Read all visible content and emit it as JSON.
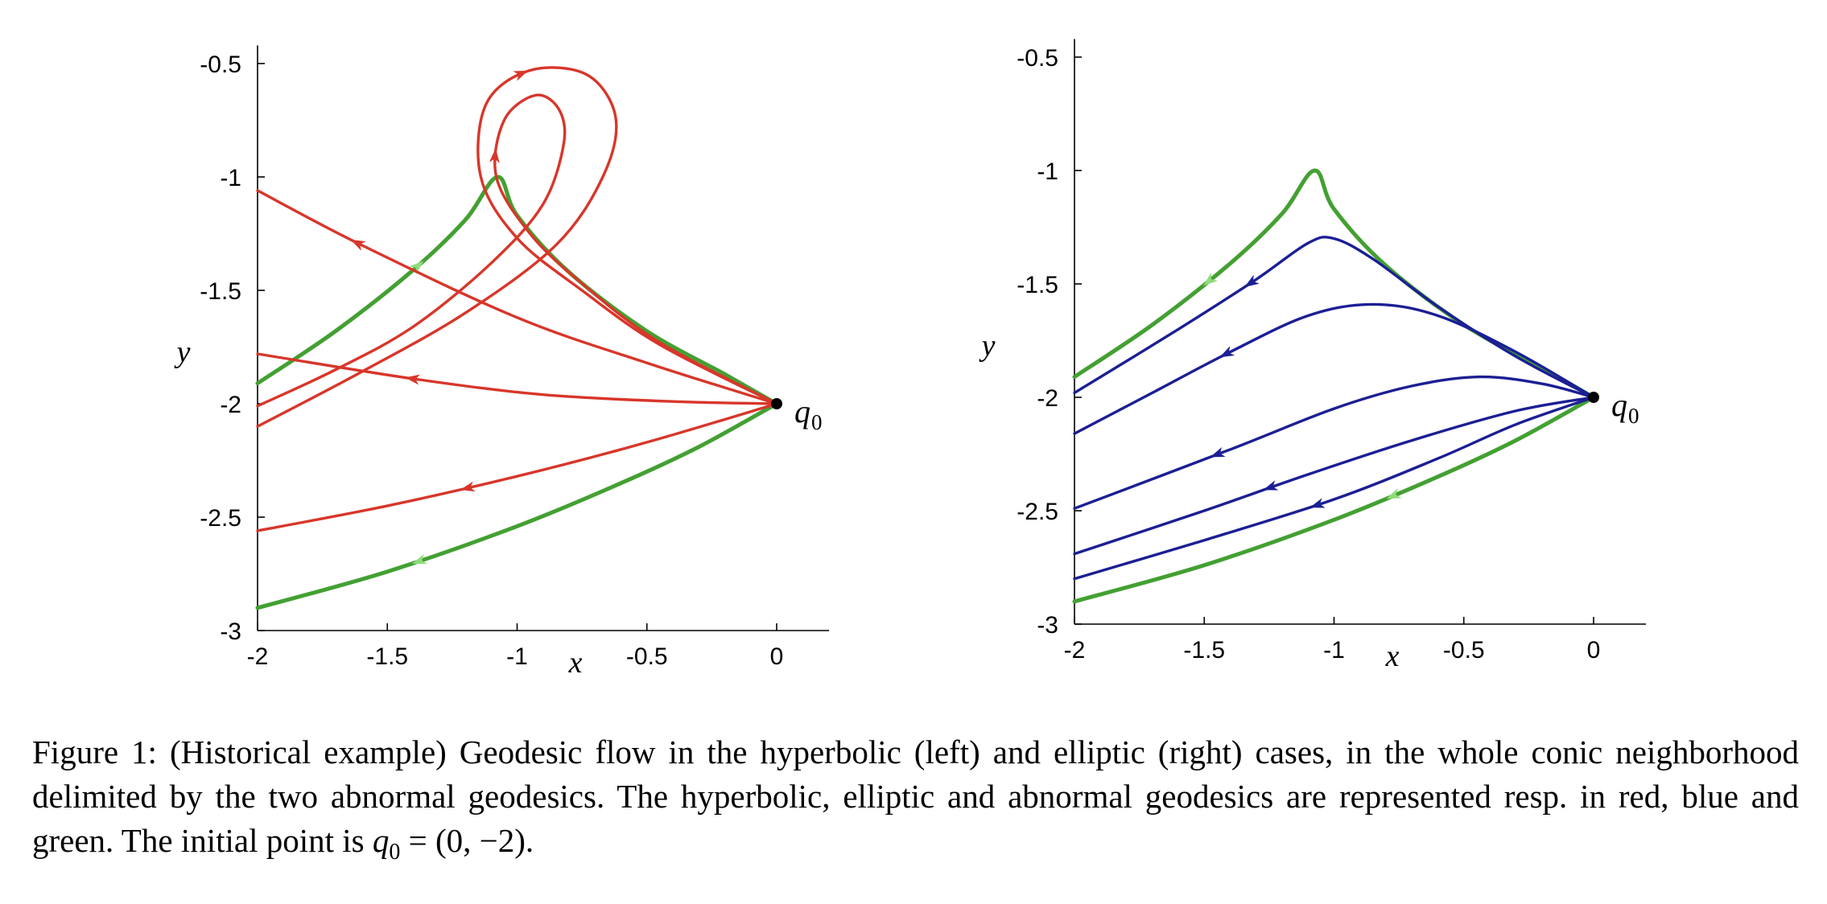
{
  "figure": {
    "caption": {
      "label": "Figure 1:",
      "text_before_math": "(Historical example) Geodesic flow in the hyperbolic (left) and elliptic (right) cases, in the whole conic neighborhood delimited by the two abnormal geodesics. The hyperbolic, elliptic and abnormal geodesics are represented resp. in red, blue and green. The initial point is",
      "math_var": "q",
      "math_sub": "0",
      "math_rest": "= (0, −2)."
    },
    "colors": {
      "hyperbolic": "#d8362a",
      "elliptic": "#1b1f94",
      "abnormal": "#43a032",
      "abnormal_arrow": "#8fdc7c",
      "axis": "#000000"
    }
  },
  "chart_data": [
    {
      "type": "line",
      "title": "",
      "panel": "left (hyperbolic)",
      "xlabel": "x",
      "ylabel": "y",
      "xlim": [
        -2,
        0.2
      ],
      "ylim": [
        -3,
        -0.42
      ],
      "xticks": [
        -2,
        -1.5,
        -1,
        -0.5,
        0
      ],
      "xtick_labels": [
        "-2",
        "-1.5",
        "-1",
        "-0.5",
        "0"
      ],
      "yticks": [
        -3,
        -2.5,
        -2,
        -1.5,
        -1,
        -0.5
      ],
      "ytick_labels": [
        "-3",
        "-2.5",
        "-2",
        "-1.5",
        "-1",
        "-0.5"
      ],
      "point": {
        "label": "q0",
        "label_text": "q",
        "label_sub": "0",
        "x": 0,
        "y": -2
      },
      "series": [
        {
          "name": "abnormal",
          "color": "abnormal",
          "width": 5,
          "points": [
            [
              -2,
              -1.91
            ],
            [
              -1.7,
              -1.68
            ],
            [
              -1.4,
              -1.41
            ],
            [
              -1.2,
              -1.19
            ],
            [
              -1.075,
              -1.0
            ],
            [
              -1.0,
              -1.17
            ],
            [
              -0.8,
              -1.42
            ],
            [
              -0.5,
              -1.68
            ],
            [
              -0.2,
              -1.87
            ],
            [
              0,
              -2
            ]
          ],
          "arrows": [
            0.29
          ]
        },
        {
          "name": "abnormal",
          "color": "abnormal",
          "width": 5,
          "points": [
            [
              0,
              -2
            ],
            [
              -0.3,
              -2.19
            ],
            [
              -0.6,
              -2.35
            ],
            [
              -1.0,
              -2.54
            ],
            [
              -1.5,
              -2.74
            ],
            [
              -2,
              -2.9
            ]
          ],
          "arrows": [
            0.7
          ]
        },
        {
          "name": "hyperbolic",
          "color": "hyperbolic",
          "width": 3.4,
          "points": [
            [
              0,
              -2
            ],
            [
              -0.5,
              -1.82
            ],
            [
              -1.0,
              -1.62
            ],
            [
              -1.6,
              -1.3
            ],
            [
              -2,
              -1.06
            ]
          ],
          "arrows": [
            0.8
          ]
        },
        {
          "name": "hyperbolic",
          "color": "hyperbolic",
          "width": 3.4,
          "points": [
            [
              0,
              -2
            ],
            [
              -0.4,
              -1.99
            ],
            [
              -0.9,
              -1.96
            ],
            [
              -1.4,
              -1.89
            ],
            [
              -2,
              -1.78
            ]
          ],
          "arrows": [
            0.7
          ]
        },
        {
          "name": "hyperbolic",
          "color": "hyperbolic",
          "width": 3.4,
          "points": [
            [
              0,
              -2
            ],
            [
              -0.5,
              -2.17
            ],
            [
              -1.0,
              -2.32
            ],
            [
              -1.5,
              -2.45
            ],
            [
              -2,
              -2.56
            ]
          ],
          "arrows": [
            0.6
          ]
        },
        {
          "name": "hyperbolic",
          "color": "hyperbolic",
          "width": 3.4,
          "points": [
            [
              0,
              -2
            ],
            [
              -0.45,
              -1.73
            ],
            [
              -0.75,
              -1.47
            ],
            [
              -0.95,
              -1.25
            ],
            [
              -1.08,
              -1.0
            ],
            [
              -1.05,
              -0.75
            ],
            [
              -0.93,
              -0.64
            ],
            [
              -0.84,
              -0.7
            ],
            [
              -0.82,
              -0.85
            ],
            [
              -0.9,
              -1.12
            ],
            [
              -1.1,
              -1.38
            ],
            [
              -1.4,
              -1.66
            ],
            [
              -1.7,
              -1.85
            ],
            [
              -2,
              -2.01
            ]
          ],
          "arrows": [
            0.41
          ]
        },
        {
          "name": "hyperbolic",
          "color": "hyperbolic",
          "width": 3.4,
          "points": [
            [
              0,
              -2
            ],
            [
              -0.45,
              -1.74
            ],
            [
              -0.75,
              -1.5
            ],
            [
              -1.0,
              -1.27
            ],
            [
              -1.14,
              -1.0
            ],
            [
              -1.12,
              -0.68
            ],
            [
              -0.95,
              -0.53
            ],
            [
              -0.73,
              -0.55
            ],
            [
              -0.62,
              -0.74
            ],
            [
              -0.67,
              -1.0
            ],
            [
              -0.85,
              -1.3
            ],
            [
              -1.2,
              -1.6
            ],
            [
              -1.6,
              -1.86
            ],
            [
              -2,
              -2.1
            ]
          ],
          "arrows": [
            0.45
          ]
        }
      ]
    },
    {
      "type": "line",
      "title": "",
      "panel": "right (elliptic)",
      "xlabel": "x",
      "ylabel": "y",
      "xlim": [
        -2,
        0.2
      ],
      "ylim": [
        -3,
        -0.42
      ],
      "xticks": [
        -2,
        -1.5,
        -1,
        -0.5,
        0
      ],
      "xtick_labels": [
        "-2",
        "-1.5",
        "-1",
        "-0.5",
        "0"
      ],
      "yticks": [
        -3,
        -2.5,
        -2,
        -1.5,
        -1,
        -0.5
      ],
      "ytick_labels": [
        "-3",
        "-2.5",
        "-2",
        "-1.5",
        "-1",
        "-0.5"
      ],
      "point": {
        "label": "q0",
        "label_text": "q",
        "label_sub": "0",
        "x": 0,
        "y": -2
      },
      "series": [
        {
          "name": "abnormal",
          "color": "abnormal",
          "width": 5,
          "points": [
            [
              0,
              -2
            ],
            [
              -0.2,
              -1.87
            ],
            [
              -0.5,
              -1.68
            ],
            [
              -0.8,
              -1.42
            ],
            [
              -1.0,
              -1.17
            ],
            [
              -1.075,
              -1.0
            ],
            [
              -1.2,
              -1.19
            ],
            [
              -1.4,
              -1.41
            ],
            [
              -1.7,
              -1.68
            ],
            [
              -2,
              -1.91
            ]
          ],
          "arrows": [
            0.76
          ]
        },
        {
          "name": "abnormal",
          "color": "abnormal",
          "width": 5,
          "points": [
            [
              0,
              -2
            ],
            [
              -0.3,
              -2.19
            ],
            [
              -0.6,
              -2.35
            ],
            [
              -1.0,
              -2.54
            ],
            [
              -1.5,
              -2.74
            ],
            [
              -2,
              -2.9
            ]
          ],
          "arrows": [
            0.4
          ]
        },
        {
          "name": "elliptic",
          "color": "elliptic",
          "width": 3.4,
          "points": [
            [
              0,
              -2
            ],
            [
              -0.3,
              -1.82
            ],
            [
              -0.6,
              -1.6
            ],
            [
              -0.85,
              -1.39
            ],
            [
              -1.0,
              -1.3
            ],
            [
              -1.1,
              -1.32
            ],
            [
              -1.3,
              -1.48
            ],
            [
              -1.6,
              -1.7
            ],
            [
              -2,
              -1.98
            ]
          ],
          "arrows": [
            0.66
          ]
        },
        {
          "name": "elliptic",
          "color": "elliptic",
          "width": 3.4,
          "points": [
            [
              0,
              -2
            ],
            [
              -0.3,
              -1.8
            ],
            [
              -0.6,
              -1.64
            ],
            [
              -0.85,
              -1.59
            ],
            [
              -1.1,
              -1.64
            ],
            [
              -1.4,
              -1.8
            ],
            [
              -1.7,
              -1.98
            ],
            [
              -2,
              -2.16
            ]
          ],
          "arrows": [
            0.7
          ]
        },
        {
          "name": "elliptic",
          "color": "elliptic",
          "width": 3.4,
          "points": [
            [
              0,
              -2
            ],
            [
              -0.2,
              -1.94
            ],
            [
              -0.44,
              -1.91
            ],
            [
              -0.7,
              -1.95
            ],
            [
              -1.0,
              -2.05
            ],
            [
              -1.4,
              -2.23
            ],
            [
              -2,
              -2.49
            ]
          ],
          "arrows": [
            0.72
          ]
        },
        {
          "name": "elliptic",
          "color": "elliptic",
          "width": 3.4,
          "points": [
            [
              0,
              -2
            ],
            [
              -0.3,
              -2.06
            ],
            [
              -0.7,
              -2.19
            ],
            [
              -1.1,
              -2.34
            ],
            [
              -1.5,
              -2.5
            ],
            [
              -2,
              -2.69
            ]
          ],
          "arrows": [
            0.62
          ]
        },
        {
          "name": "elliptic",
          "color": "elliptic",
          "width": 3.4,
          "points": [
            [
              0,
              -2
            ],
            [
              -0.3,
              -2.12
            ],
            [
              -0.6,
              -2.27
            ],
            [
              -1.0,
              -2.45
            ],
            [
              -1.5,
              -2.63
            ],
            [
              -2,
              -2.8
            ]
          ],
          "arrows": [
            0.54
          ]
        }
      ]
    }
  ]
}
